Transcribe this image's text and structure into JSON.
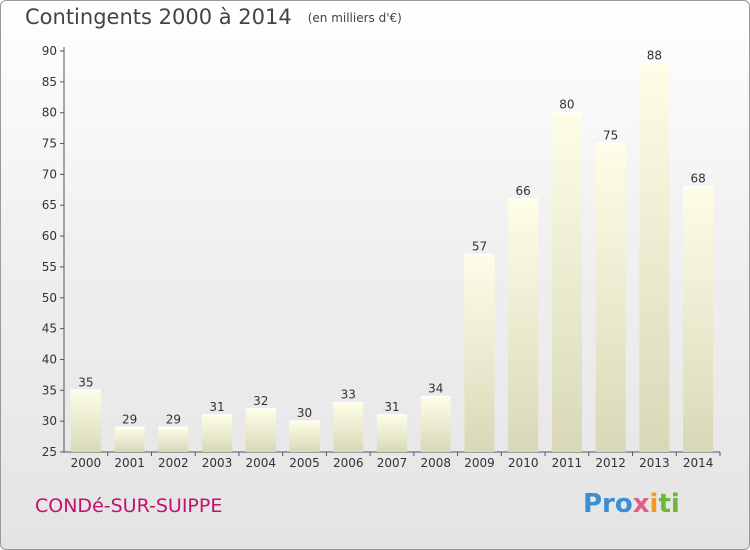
{
  "header": {
    "title": "Contingents 2000 à 2014",
    "unit": "(en milliers d'€)"
  },
  "footer": {
    "place": "CONDé-SUR-SUIPPE",
    "logo_parts": [
      "Pro",
      "x",
      "i",
      "ti"
    ]
  },
  "colors": {
    "place": "#c0126f",
    "bar_top": "#fefee8",
    "bar_bottom": "#d8d8b8"
  },
  "chart_data": {
    "type": "bar",
    "categories": [
      "2000",
      "2001",
      "2002",
      "2003",
      "2004",
      "2005",
      "2006",
      "2007",
      "2008",
      "2009",
      "2010",
      "2011",
      "2012",
      "2013",
      "2014"
    ],
    "values": [
      35,
      29,
      29,
      31,
      32,
      30,
      33,
      31,
      34,
      57,
      66,
      80,
      75,
      88,
      68
    ],
    "data_labels": [
      "35",
      "29",
      "29",
      "31",
      "32",
      "30",
      "33",
      "31",
      "34",
      "57",
      "66",
      "80",
      "75",
      "88",
      "68"
    ],
    "ylim": [
      25,
      90
    ],
    "yticks": [
      25,
      30,
      35,
      40,
      45,
      50,
      55,
      60,
      65,
      70,
      75,
      80,
      85,
      90
    ],
    "grid": false,
    "title": "Contingents 2000 à 2014",
    "xlabel": "",
    "ylabel": ""
  }
}
